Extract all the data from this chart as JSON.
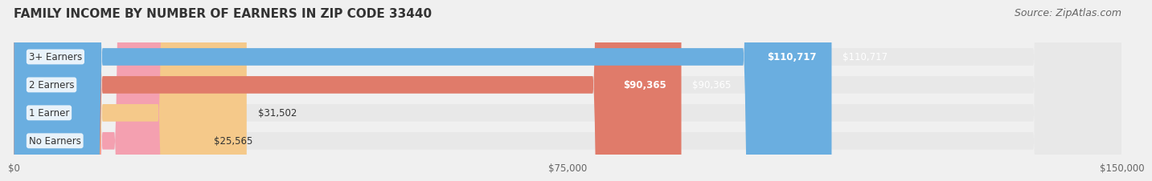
{
  "title": "FAMILY INCOME BY NUMBER OF EARNERS IN ZIP CODE 33440",
  "source": "Source: ZipAtlas.com",
  "categories": [
    "No Earners",
    "1 Earner",
    "2 Earners",
    "3+ Earners"
  ],
  "values": [
    25565,
    31502,
    90365,
    110717
  ],
  "bar_colors": [
    "#f4a0b0",
    "#f5c98a",
    "#e07b6a",
    "#6aaee0"
  ],
  "label_colors": [
    "#555555",
    "#555555",
    "#ffffff",
    "#ffffff"
  ],
  "xlim": [
    0,
    150000
  ],
  "xticks": [
    0,
    75000,
    150000
  ],
  "xtick_labels": [
    "$0",
    "$75,000",
    "$150,000"
  ],
  "background_color": "#f0f0f0",
  "bar_bg_color": "#e8e8e8",
  "title_fontsize": 11,
  "source_fontsize": 9
}
